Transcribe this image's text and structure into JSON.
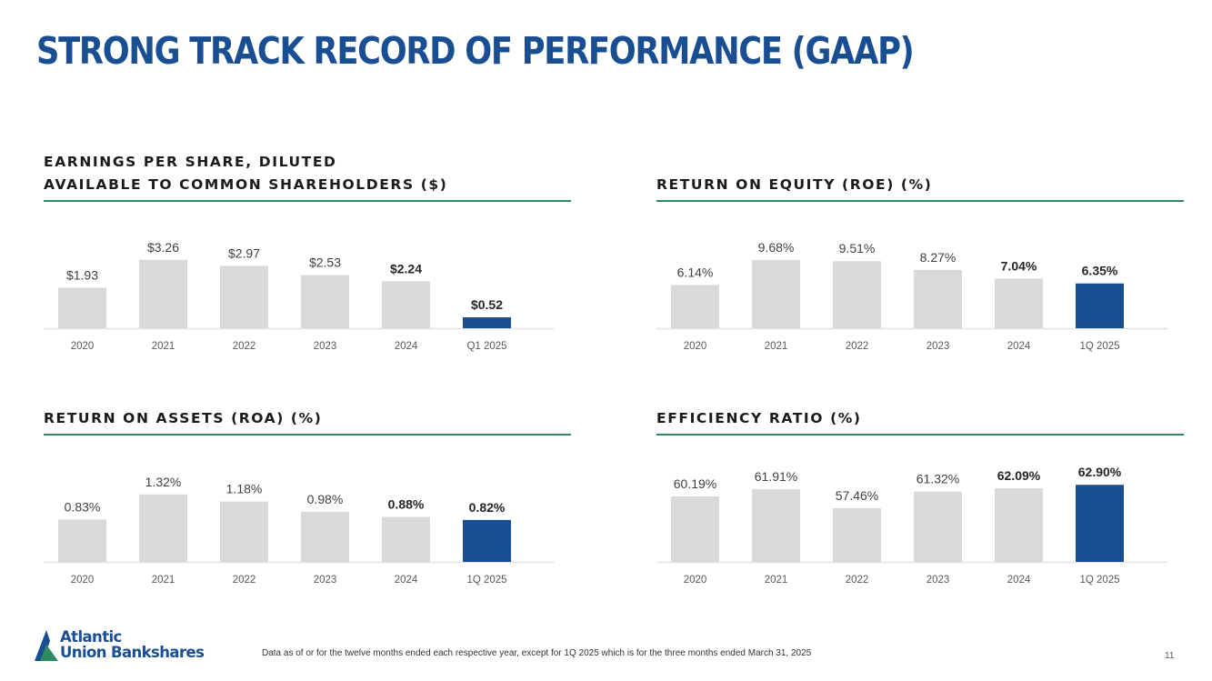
{
  "slide": {
    "title": "STRONG TRACK RECORD OF PERFORMANCE (GAAP)",
    "footnote": "Data as of or for the twelve months ended each respective year, except for 1Q 2025 which is for the three months ended March 31, 2025",
    "page_number": "11",
    "logo": {
      "line1": "Atlantic",
      "line2": "Union Bankshares"
    }
  },
  "colors": {
    "bar_gray": "#d9d9d9",
    "bar_highlight": "#1a4e92",
    "rule": "#2f8a60",
    "title": "#1a4e92"
  },
  "chart_data": [
    {
      "id": "eps",
      "type": "bar",
      "title_lines": [
        "EARNINGS PER SHARE, DILUTED",
        "AVAILABLE TO COMMON SHAREHOLDERS ($)"
      ],
      "categories": [
        "2020",
        "2021",
        "2022",
        "2023",
        "2024",
        "Q1 2025"
      ],
      "values": [
        1.93,
        3.26,
        2.97,
        2.53,
        2.24,
        0.52
      ],
      "labels": [
        "$1.93",
        "$3.26",
        "$2.97",
        "$2.53",
        "$2.24",
        "$0.52"
      ],
      "ylim": [
        0,
        3.9
      ],
      "highlight_index": 5,
      "bold_label_indices": [
        4,
        5
      ]
    },
    {
      "id": "roe",
      "type": "bar",
      "title_lines": [
        "RETURN ON EQUITY (ROE) (%)"
      ],
      "categories": [
        "2020",
        "2021",
        "2022",
        "2023",
        "2024",
        "1Q 2025"
      ],
      "values": [
        6.14,
        9.68,
        9.51,
        8.27,
        7.04,
        6.35
      ],
      "labels": [
        "6.14%",
        "9.68%",
        "9.51%",
        "8.27%",
        "7.04%",
        "6.35%"
      ],
      "ylim": [
        0,
        11.6
      ],
      "highlight_index": 5,
      "bold_label_indices": [
        4,
        5
      ]
    },
    {
      "id": "roa",
      "type": "bar",
      "title_lines": [
        "RETURN ON ASSETS (ROA) (%)"
      ],
      "categories": [
        "2020",
        "2021",
        "2022",
        "2023",
        "2024",
        "1Q 2025"
      ],
      "values": [
        0.83,
        1.32,
        1.18,
        0.98,
        0.88,
        0.82
      ],
      "labels": [
        "0.83%",
        "1.32%",
        "1.18%",
        "0.98%",
        "0.88%",
        "0.82%"
      ],
      "ylim": [
        0,
        1.6
      ],
      "highlight_index": 5,
      "bold_label_indices": [
        4,
        5
      ]
    },
    {
      "id": "efficiency",
      "type": "bar",
      "title_lines": [
        "EFFICIENCY RATIO (%)"
      ],
      "categories": [
        "2020",
        "2021",
        "2022",
        "2023",
        "2024",
        "1Q 2025"
      ],
      "values": [
        60.19,
        61.91,
        57.46,
        61.32,
        62.09,
        62.9
      ],
      "labels": [
        "60.19%",
        "61.91%",
        "57.46%",
        "61.32%",
        "62.09%",
        "62.90%"
      ],
      "ylim": [
        45,
        64
      ],
      "highlight_index": 5,
      "bold_label_indices": [
        4,
        5
      ]
    }
  ]
}
